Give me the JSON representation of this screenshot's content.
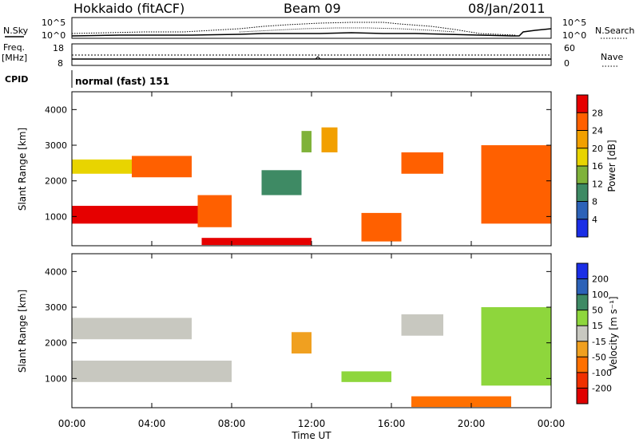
{
  "header": {
    "station": "Hokkaido (fitACF)",
    "beam": "Beam 09",
    "date": "08/Jan/2011"
  },
  "summary": {
    "nsky_label": "N.Sky",
    "nsky_ticks": [
      "10^5",
      "10^0"
    ],
    "nsearch_label": "N.Search",
    "nsearch_ticks": [
      "10^5",
      "10^0"
    ],
    "freq_label_top": "Freq.",
    "freq_label_unit": "[MHz]",
    "freq_ticks": [
      "18",
      "8"
    ],
    "nave_label": "Nave",
    "nave_ticks": [
      "60",
      "0"
    ],
    "cpid_label": "CPID",
    "cpid_value": "normal (fast) 151"
  },
  "axes": {
    "ylabel": "Slant Range [km]",
    "yticks": [
      "1000",
      "2000",
      "3000",
      "4000"
    ],
    "xticks": [
      "00:00",
      "04:00",
      "08:00",
      "12:00",
      "16:00",
      "20:00",
      "00:00"
    ],
    "xlabel": "Time UT"
  },
  "power_scale": {
    "label": "Power [dB]",
    "ticks": [
      "4",
      "8",
      "12",
      "16",
      "20",
      "24",
      "28"
    ],
    "colors": [
      "#1a2ee6",
      "#2c62b8",
      "#3e8a64",
      "#7fb23a",
      "#e8d400",
      "#f2a000",
      "#ff6000",
      "#e60000"
    ]
  },
  "velocity_scale": {
    "label": "Velocity [m s⁻¹]",
    "ticks": [
      "200",
      "100",
      "50",
      "15",
      "-15",
      "-50",
      "-100",
      "-200"
    ],
    "colors": [
      "#1a2ee6",
      "#2c62b8",
      "#3e8a64",
      "#8ed63c",
      "#c8c8c0",
      "#f0a020",
      "#ff7000",
      "#f03000",
      "#e00000"
    ]
  },
  "chart_data": [
    {
      "type": "heatmap",
      "title": "Power",
      "xlabel": "Time UT",
      "ylabel": "Slant Range [km]",
      "xlim": [
        "00:00",
        "24:00"
      ],
      "ylim": [
        180,
        4500
      ],
      "colorbar": "Power [dB]",
      "clim": [
        0,
        30
      ],
      "regions": [
        {
          "t": [
            0.0,
            6.4
          ],
          "r": [
            800,
            1300
          ],
          "value": 29
        },
        {
          "t": [
            0.0,
            3.0
          ],
          "r": [
            2200,
            2600
          ],
          "value": 17
        },
        {
          "t": [
            3.0,
            6.0
          ],
          "r": [
            2100,
            2700
          ],
          "value": 24
        },
        {
          "t": [
            6.3,
            8.0
          ],
          "r": [
            700,
            1600
          ],
          "value": 27
        },
        {
          "t": [
            6.5,
            12.0
          ],
          "r": [
            200,
            400
          ],
          "value": 28
        },
        {
          "t": [
            9.5,
            11.5
          ],
          "r": [
            1600,
            2300
          ],
          "value": 8
        },
        {
          "t": [
            11.5,
            12.0
          ],
          "r": [
            2800,
            3400
          ],
          "value": 14
        },
        {
          "t": [
            12.5,
            13.3
          ],
          "r": [
            2800,
            3500
          ],
          "value": 20
        },
        {
          "t": [
            14.5,
            16.5
          ],
          "r": [
            300,
            1100
          ],
          "value": 26
        },
        {
          "t": [
            16.5,
            18.6
          ],
          "r": [
            2200,
            2800
          ],
          "value": 27
        },
        {
          "t": [
            20.5,
            24.0
          ],
          "r": [
            800,
            3000
          ],
          "value": 24
        }
      ]
    },
    {
      "type": "heatmap",
      "title": "Velocity",
      "xlabel": "Time UT",
      "ylabel": "Slant Range [km]",
      "xlim": [
        "00:00",
        "24:00"
      ],
      "ylim": [
        180,
        4500
      ],
      "colorbar": "Velocity [m s⁻¹]",
      "clim": [
        -200,
        200
      ],
      "regions": [
        {
          "t": [
            0.0,
            8.0
          ],
          "r": [
            900,
            1500
          ],
          "value": 0
        },
        {
          "t": [
            0.0,
            6.0
          ],
          "r": [
            2100,
            2700
          ],
          "value": 0
        },
        {
          "t": [
            11.0,
            12.0
          ],
          "r": [
            1700,
            2300
          ],
          "value": -50
        },
        {
          "t": [
            13.5,
            16.0
          ],
          "r": [
            900,
            1200
          ],
          "value": 30
        },
        {
          "t": [
            16.5,
            18.6
          ],
          "r": [
            2200,
            2800
          ],
          "value": 0
        },
        {
          "t": [
            17.0,
            22.0
          ],
          "r": [
            200,
            500
          ],
          "value": -60
        },
        {
          "t": [
            20.5,
            24.0
          ],
          "r": [
            800,
            3000
          ],
          "value": 30
        }
      ]
    }
  ]
}
